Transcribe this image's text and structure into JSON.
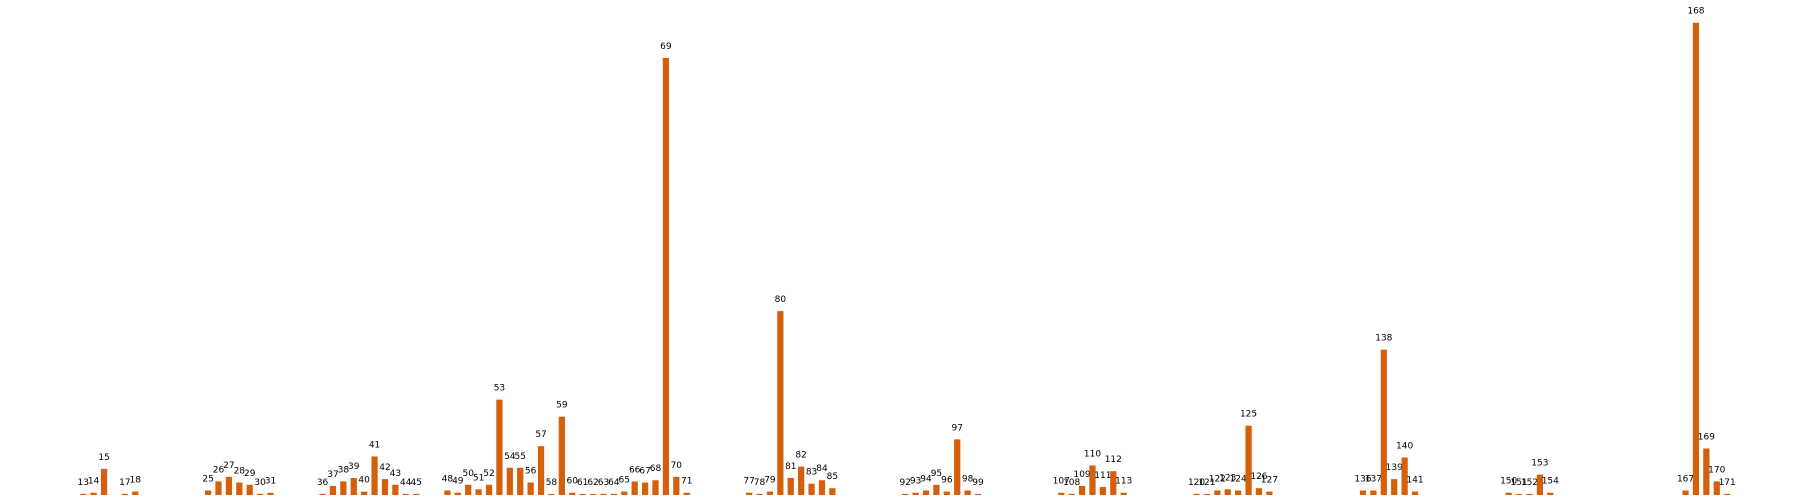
{
  "chart_data": {
    "type": "bar",
    "color": "#d4600c",
    "x": [
      13,
      14,
      15,
      17,
      18,
      25,
      26,
      27,
      28,
      29,
      30,
      31,
      36,
      37,
      38,
      39,
      40,
      41,
      42,
      43,
      44,
      45,
      48,
      49,
      50,
      51,
      52,
      53,
      54,
      55,
      56,
      57,
      58,
      59,
      60,
      61,
      62,
      63,
      64,
      65,
      66,
      67,
      68,
      69,
      70,
      71,
      77,
      78,
      79,
      80,
      81,
      82,
      83,
      84,
      85,
      92,
      93,
      94,
      95,
      96,
      97,
      98,
      99,
      107,
      108,
      109,
      110,
      111,
      112,
      113,
      120,
      121,
      122,
      123,
      124,
      125,
      126,
      127,
      136,
      137,
      138,
      139,
      140,
      141,
      150,
      151,
      152,
      153,
      154,
      167,
      168,
      169,
      170,
      171
    ],
    "values": [
      1,
      2,
      23,
      1,
      3,
      4,
      12,
      16,
      11,
      9,
      1,
      2,
      1,
      8,
      12,
      15,
      3,
      34,
      14,
      9,
      1,
      1,
      4,
      2,
      9,
      5,
      9,
      84,
      24,
      24,
      11,
      43,
      1,
      69,
      2,
      1,
      1,
      1,
      1,
      3,
      12,
      11,
      13,
      385,
      16,
      2,
      2,
      1,
      3,
      162,
      15,
      25,
      10,
      13,
      6,
      1,
      2,
      4,
      9,
      3,
      49,
      4,
      1,
      2,
      1,
      8,
      26,
      7,
      21,
      2,
      1,
      1,
      4,
      5,
      4,
      61,
      6,
      3,
      4,
      4,
      128,
      14,
      33,
      3,
      2,
      1,
      1,
      18,
      2,
      4,
      416,
      41,
      12,
      1
    ],
    "xlim": [
      5,
      178
    ],
    "ylim": [
      0,
      436
    ]
  }
}
